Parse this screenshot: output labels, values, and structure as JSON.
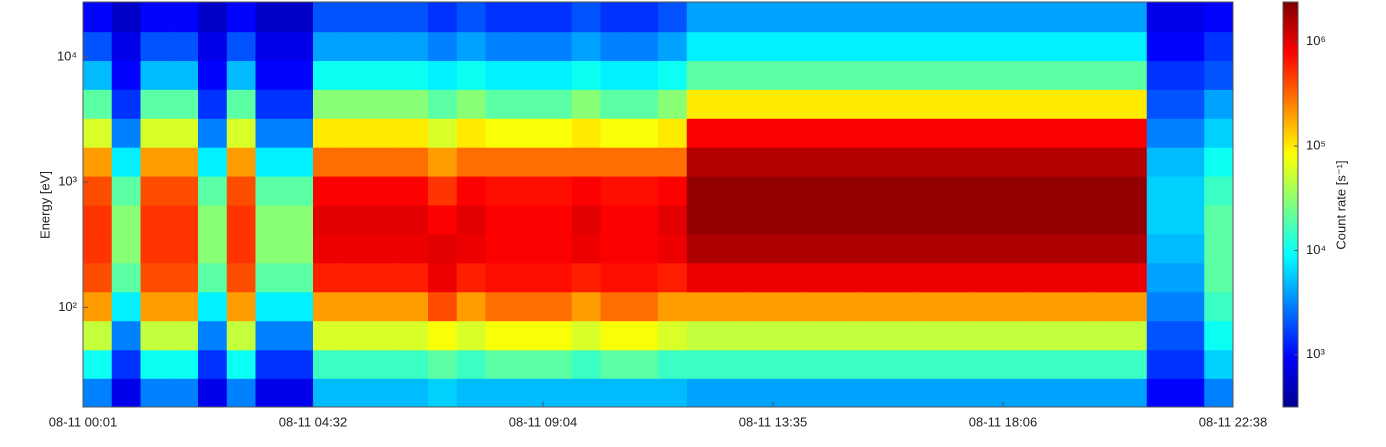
{
  "chart_data": {
    "type": "heatmap",
    "colormap": "jet",
    "log_y": true,
    "log_color": true,
    "ylabel": "Energy [eV]",
    "colorbar_label": "Count rate [s⁻¹]",
    "xticks": [
      "08-11 00:01",
      "08-11 04:32",
      "08-11 09:04",
      "08-11 13:35",
      "08-11 18:06",
      "08-11 22:38"
    ],
    "y": [
      21,
      35,
      60,
      102,
      174,
      296,
      504,
      857,
      1460,
      2480,
      4230,
      7190,
      12200,
      20800
    ],
    "ylim": [
      16,
      27500
    ],
    "yticks": [
      {
        "value": 100,
        "label": "10²"
      },
      {
        "value": 1000,
        "label": "10³"
      },
      {
        "value": 10000,
        "label": "10⁴"
      }
    ],
    "clim": [
      316,
      2400000
    ],
    "cticks": [
      {
        "value": 1000,
        "label": "10³"
      },
      {
        "value": 10000,
        "label": "10⁴"
      },
      {
        "value": 100000,
        "label": "10⁵"
      },
      {
        "value": 1000000,
        "label": "10⁶"
      }
    ],
    "values": [
      [
        3000.0,
        10000.0,
        50000.0,
        200000.0,
        400000.0,
        500000.0,
        500000.0,
        400000.0,
        200000.0,
        60000.0,
        20000.0,
        5000.0,
        2000.0,
        1000.0
      ],
      [
        800.0,
        1500.0,
        3000.0,
        8000.0,
        20000.0,
        30000.0,
        30000.0,
        20000.0,
        8000.0,
        3000.0,
        1500.0,
        1000.0,
        800.0,
        600.0
      ],
      [
        3000.0,
        10000.0,
        50000.0,
        200000.0,
        400000.0,
        500000.0,
        500000.0,
        400000.0,
        200000.0,
        60000.0,
        20000.0,
        5000.0,
        2000.0,
        1000.0
      ],
      [
        3000.0,
        10000.0,
        50000.0,
        200000.0,
        400000.0,
        500000.0,
        500000.0,
        400000.0,
        200000.0,
        60000.0,
        20000.0,
        5000.0,
        2000.0,
        1000.0
      ],
      [
        800.0,
        1500.0,
        3000.0,
        8000.0,
        20000.0,
        30000.0,
        30000.0,
        20000.0,
        8000.0,
        3000.0,
        1500.0,
        1000.0,
        800.0,
        600.0
      ],
      [
        3000.0,
        10000.0,
        50000.0,
        200000.0,
        400000.0,
        500000.0,
        500000.0,
        400000.0,
        200000.0,
        60000.0,
        20000.0,
        5000.0,
        2000.0,
        1000.0
      ],
      [
        800.0,
        1500.0,
        3000.0,
        8000.0,
        20000.0,
        30000.0,
        30000.0,
        20000.0,
        8000.0,
        3000.0,
        1500.0,
        1000.0,
        800.0,
        600.0
      ],
      [
        800.0,
        1500.0,
        3000.0,
        8000.0,
        20000.0,
        30000.0,
        30000.0,
        20000.0,
        8000.0,
        3000.0,
        1500.0,
        1000.0,
        800.0,
        600.0
      ],
      [
        5000.0,
        15000.0,
        60000.0,
        200000.0,
        600000.0,
        900000.0,
        1000000.0,
        800000.0,
        300000.0,
        100000.0,
        30000.0,
        10000.0,
        4000.0,
        2000.0
      ],
      [
        5000.0,
        15000.0,
        60000.0,
        200000.0,
        600000.0,
        900000.0,
        1000000.0,
        800000.0,
        300000.0,
        100000.0,
        30000.0,
        10000.0,
        4000.0,
        2000.0
      ],
      [
        5000.0,
        15000.0,
        60000.0,
        200000.0,
        600000.0,
        900000.0,
        1000000.0,
        800000.0,
        300000.0,
        100000.0,
        30000.0,
        10000.0,
        4000.0,
        2000.0
      ],
      [
        5000.0,
        15000.0,
        60000.0,
        200000.0,
        600000.0,
        900000.0,
        1000000.0,
        800000.0,
        300000.0,
        100000.0,
        30000.0,
        10000.0,
        4000.0,
        2000.0
      ],
      [
        6000.0,
        20000.0,
        80000.0,
        400000.0,
        900000.0,
        1000000.0,
        800000.0,
        500000.0,
        200000.0,
        60000.0,
        20000.0,
        8000.0,
        3000.0,
        1500.0
      ],
      [
        5000.0,
        15000.0,
        60000.0,
        200000.0,
        600000.0,
        900000.0,
        1000000.0,
        800000.0,
        300000.0,
        100000.0,
        30000.0,
        10000.0,
        4000.0,
        2000.0
      ],
      [
        5000.0,
        20000.0,
        80000.0,
        300000.0,
        700000.0,
        800000.0,
        800000.0,
        700000.0,
        300000.0,
        80000.0,
        20000.0,
        8000.0,
        3000.0,
        1500.0
      ],
      [
        5000.0,
        20000.0,
        80000.0,
        300000.0,
        700000.0,
        800000.0,
        800000.0,
        700000.0,
        300000.0,
        80000.0,
        20000.0,
        8000.0,
        3000.0,
        1500.0
      ],
      [
        5000.0,
        20000.0,
        80000.0,
        300000.0,
        700000.0,
        800000.0,
        800000.0,
        700000.0,
        300000.0,
        80000.0,
        20000.0,
        8000.0,
        3000.0,
        1500.0
      ],
      [
        5000.0,
        15000.0,
        60000.0,
        200000.0,
        600000.0,
        900000.0,
        1000000.0,
        800000.0,
        300000.0,
        100000.0,
        30000.0,
        10000.0,
        4000.0,
        2000.0
      ],
      [
        5000.0,
        20000.0,
        80000.0,
        300000.0,
        700000.0,
        800000.0,
        800000.0,
        700000.0,
        300000.0,
        80000.0,
        20000.0,
        8000.0,
        3000.0,
        1500.0
      ],
      [
        5000.0,
        20000.0,
        80000.0,
        300000.0,
        700000.0,
        800000.0,
        800000.0,
        700000.0,
        300000.0,
        80000.0,
        20000.0,
        8000.0,
        3000.0,
        1500.0
      ],
      [
        5000.0,
        15000.0,
        60000.0,
        200000.0,
        600000.0,
        900000.0,
        1000000.0,
        800000.0,
        300000.0,
        100000.0,
        30000.0,
        10000.0,
        4000.0,
        2000.0
      ],
      [
        4000.0,
        15000.0,
        50000.0,
        200000.0,
        900000.0,
        1600000.0,
        2000000.0,
        2000000.0,
        1500000.0,
        800000.0,
        100000.0,
        20000.0,
        8000.0,
        4000.0
      ],
      [
        4000.0,
        15000.0,
        50000.0,
        200000.0,
        900000.0,
        1600000.0,
        2000000.0,
        2000000.0,
        1500000.0,
        800000.0,
        100000.0,
        20000.0,
        8000.0,
        4000.0
      ],
      [
        4000.0,
        15000.0,
        50000.0,
        200000.0,
        900000.0,
        1600000.0,
        2000000.0,
        2000000.0,
        1500000.0,
        800000.0,
        100000.0,
        20000.0,
        8000.0,
        4000.0
      ],
      [
        4000.0,
        15000.0,
        50000.0,
        200000.0,
        900000.0,
        1600000.0,
        2000000.0,
        2000000.0,
        1500000.0,
        800000.0,
        100000.0,
        20000.0,
        8000.0,
        4000.0
      ],
      [
        4000.0,
        15000.0,
        50000.0,
        200000.0,
        900000.0,
        1600000.0,
        2000000.0,
        2000000.0,
        1500000.0,
        800000.0,
        100000.0,
        20000.0,
        8000.0,
        4000.0
      ],
      [
        4000.0,
        15000.0,
        50000.0,
        200000.0,
        900000.0,
        1600000.0,
        2000000.0,
        2000000.0,
        1500000.0,
        800000.0,
        100000.0,
        20000.0,
        8000.0,
        4000.0
      ],
      [
        4000.0,
        15000.0,
        50000.0,
        200000.0,
        900000.0,
        1600000.0,
        2000000.0,
        2000000.0,
        1500000.0,
        800000.0,
        100000.0,
        20000.0,
        8000.0,
        4000.0
      ],
      [
        4000.0,
        15000.0,
        50000.0,
        200000.0,
        900000.0,
        1600000.0,
        2000000.0,
        2000000.0,
        1500000.0,
        800000.0,
        100000.0,
        20000.0,
        8000.0,
        4000.0
      ],
      [
        4000.0,
        15000.0,
        50000.0,
        200000.0,
        900000.0,
        1600000.0,
        2000000.0,
        2000000.0,
        1500000.0,
        800000.0,
        100000.0,
        20000.0,
        8000.0,
        4000.0
      ],
      [
        4000.0,
        15000.0,
        50000.0,
        200000.0,
        900000.0,
        1600000.0,
        2000000.0,
        2000000.0,
        1500000.0,
        800000.0,
        100000.0,
        20000.0,
        8000.0,
        4000.0
      ],
      [
        4000.0,
        15000.0,
        50000.0,
        200000.0,
        900000.0,
        1600000.0,
        2000000.0,
        2000000.0,
        1500000.0,
        800000.0,
        100000.0,
        20000.0,
        8000.0,
        4000.0
      ],
      [
        4000.0,
        15000.0,
        50000.0,
        200000.0,
        900000.0,
        1600000.0,
        2000000.0,
        2000000.0,
        1500000.0,
        800000.0,
        100000.0,
        20000.0,
        8000.0,
        4000.0
      ],
      [
        4000.0,
        15000.0,
        50000.0,
        200000.0,
        900000.0,
        1600000.0,
        2000000.0,
        2000000.0,
        1500000.0,
        800000.0,
        100000.0,
        20000.0,
        8000.0,
        4000.0
      ],
      [
        4000.0,
        15000.0,
        50000.0,
        200000.0,
        900000.0,
        1600000.0,
        2000000.0,
        2000000.0,
        1500000.0,
        800000.0,
        100000.0,
        20000.0,
        8000.0,
        4000.0
      ],
      [
        4000.0,
        15000.0,
        50000.0,
        200000.0,
        900000.0,
        1600000.0,
        2000000.0,
        2000000.0,
        1500000.0,
        800000.0,
        100000.0,
        20000.0,
        8000.0,
        4000.0
      ],
      [
        4000.0,
        15000.0,
        50000.0,
        200000.0,
        900000.0,
        1600000.0,
        2000000.0,
        2000000.0,
        1500000.0,
        800000.0,
        100000.0,
        20000.0,
        8000.0,
        4000.0
      ],
      [
        1000.0,
        1500.0,
        2000.0,
        3000.0,
        4000.0,
        5000.0,
        6000.0,
        6000.0,
        5000.0,
        3000.0,
        2000.0,
        1500.0,
        1000.0,
        800.0
      ],
      [
        1000.0,
        1500.0,
        2000.0,
        3000.0,
        4000.0,
        5000.0,
        6000.0,
        6000.0,
        5000.0,
        3000.0,
        2000.0,
        1500.0,
        1000.0,
        800.0
      ],
      [
        3000.0,
        6000.0,
        10000.0,
        15000.0,
        20000.0,
        20000.0,
        20000.0,
        15000.0,
        10000.0,
        6000.0,
        4000.0,
        2000.0,
        1500.0,
        1000.0
      ]
    ]
  }
}
